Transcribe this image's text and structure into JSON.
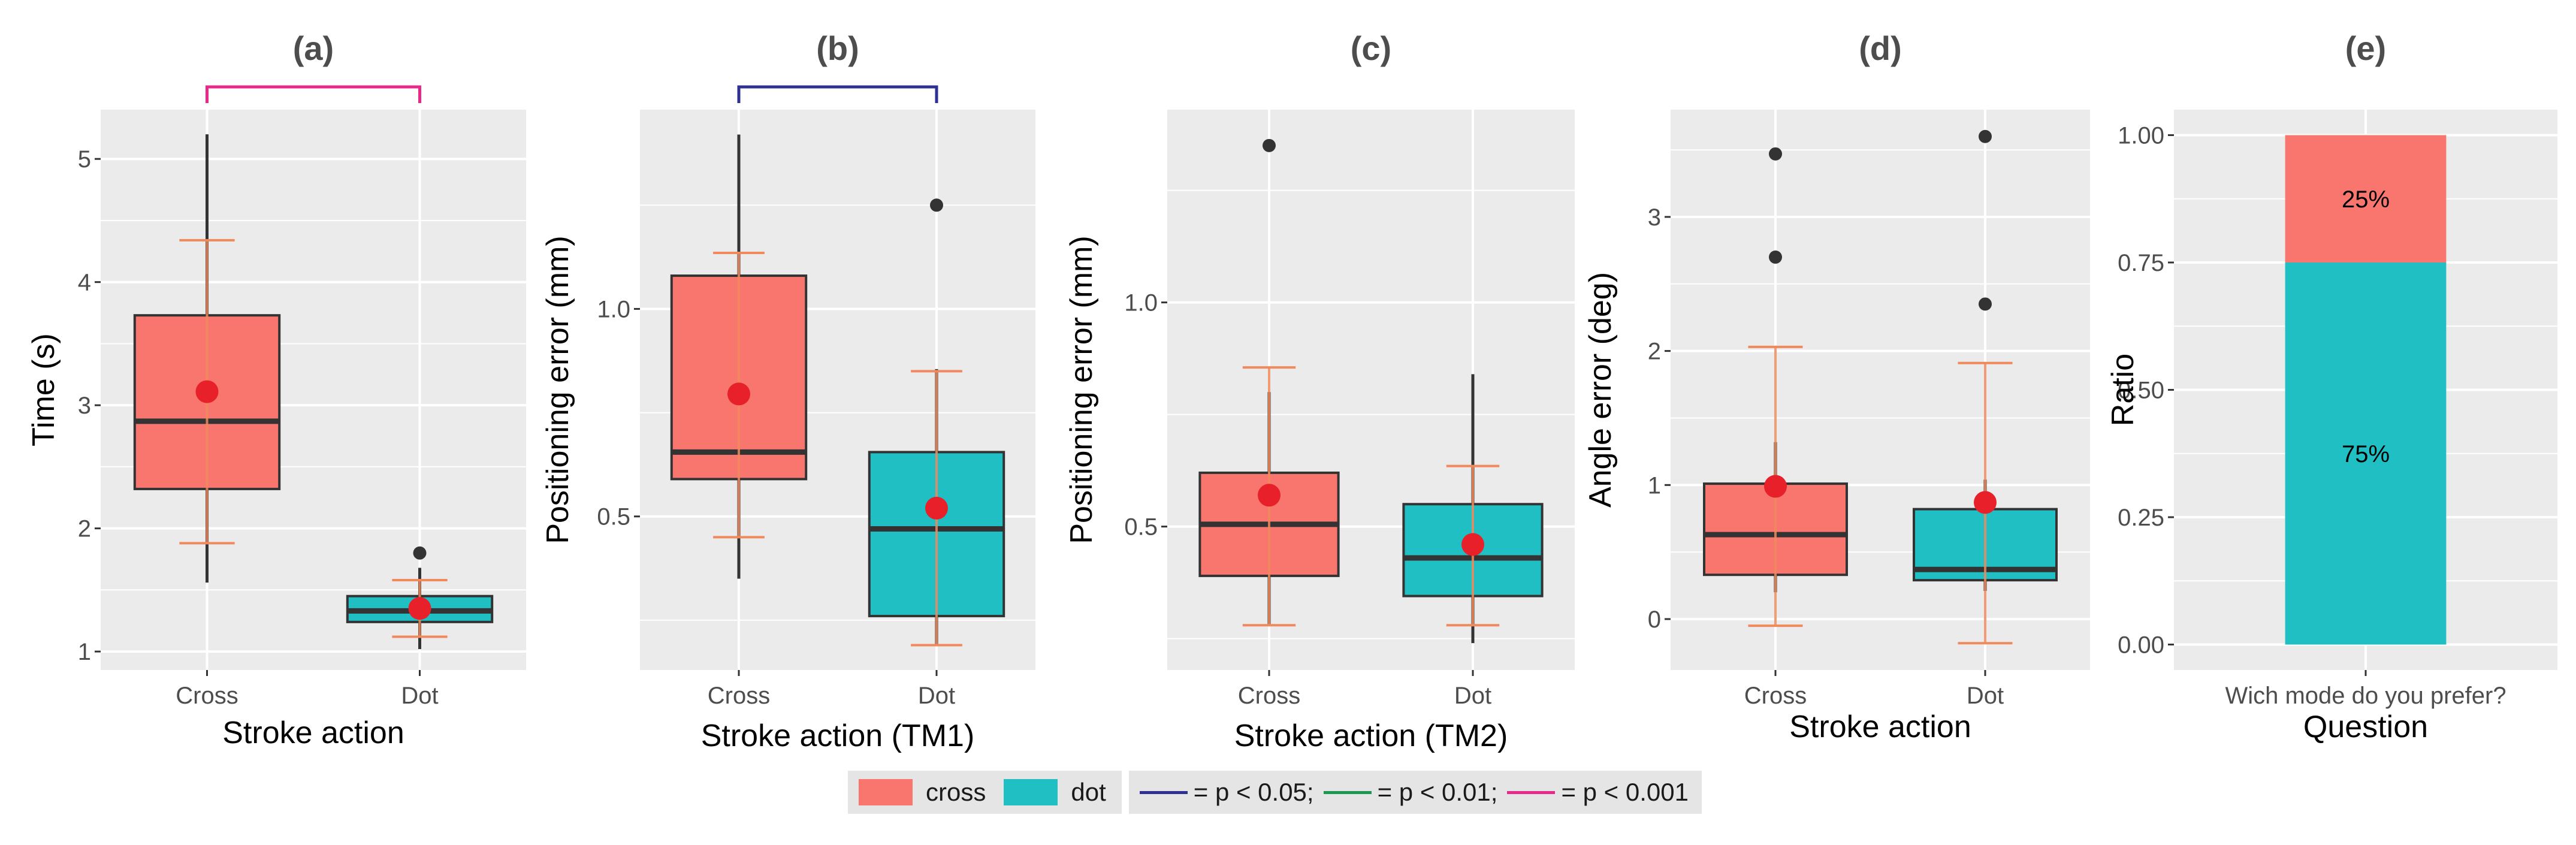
{
  "colors": {
    "cross": "#F8766D",
    "dot": "#1FBFC3",
    "mean": "#E8202A",
    "ci": "#F08A5D",
    "panel_bg": "#EBEBEB",
    "grid": "#FFFFFF",
    "outline": "#333333",
    "sig_005": "#2E3192",
    "sig_001": "#1A9850",
    "sig_0001": "#E7298A",
    "legend_bg": "#E5E5E5"
  },
  "legend": {
    "cross_label": "cross",
    "dot_label": "dot",
    "sig": [
      {
        "label": "= p < 0.05;",
        "color": "#2E3192"
      },
      {
        "label": "= p < 0.01;",
        "color": "#1A9850"
      },
      {
        "label": "= p < 0.001",
        "color": "#E7298A"
      }
    ]
  },
  "chart_data": [
    {
      "type": "box",
      "title": "(a)",
      "xlabel": "Stroke action",
      "ylabel": "Time (s)",
      "ylim": [
        0.85,
        5.4
      ],
      "yticks": [
        1,
        2,
        3,
        4,
        5
      ],
      "ytick_labels": [
        "1",
        "2",
        "3",
        "4",
        "5"
      ],
      "categories": [
        "Cross",
        "Dot"
      ],
      "boxes": [
        {
          "group": "cross",
          "q1": 2.32,
          "median": 2.87,
          "q3": 3.73,
          "whisker_low": 1.56,
          "whisker_high": 5.2,
          "mean": 3.11,
          "ci_low": 1.88,
          "ci_high": 4.34,
          "outliers": []
        },
        {
          "group": "dot",
          "q1": 1.24,
          "median": 1.33,
          "q3": 1.45,
          "whisker_low": 1.02,
          "whisker_high": 1.68,
          "mean": 1.35,
          "ci_low": 1.12,
          "ci_high": 1.58,
          "outliers": [
            1.8
          ]
        }
      ],
      "significance": {
        "level": "p < 0.001",
        "color": "#E7298A"
      }
    },
    {
      "type": "box",
      "title": "(b)",
      "xlabel": "Stroke action (TM1)",
      "ylabel": "Positioning error (mm)",
      "ylim": [
        0.13,
        1.48
      ],
      "yticks": [
        0.5,
        1.0
      ],
      "ytick_labels": [
        "0.5",
        "1.0"
      ],
      "categories": [
        "Cross",
        "Dot"
      ],
      "boxes": [
        {
          "group": "cross",
          "q1": 0.59,
          "median": 0.655,
          "q3": 1.08,
          "whisker_low": 0.35,
          "whisker_high": 1.42,
          "mean": 0.795,
          "ci_low": 0.45,
          "ci_high": 1.135,
          "outliers": []
        },
        {
          "group": "dot",
          "q1": 0.26,
          "median": 0.47,
          "q3": 0.655,
          "whisker_low": 0.19,
          "whisker_high": 0.855,
          "mean": 0.52,
          "ci_low": 0.19,
          "ci_high": 0.85,
          "outliers": [
            1.25
          ]
        }
      ],
      "significance": {
        "level": "p < 0.05",
        "color": "#2E3192"
      }
    },
    {
      "type": "box",
      "title": "(c)",
      "xlabel": "Stroke action (TM2)",
      "ylabel": "Positioning error (mm)",
      "ylim": [
        0.18,
        1.43
      ],
      "yticks": [
        0.5,
        1.0
      ],
      "ytick_labels": [
        "0.5",
        "1.0"
      ],
      "categories": [
        "Cross",
        "Dot"
      ],
      "boxes": [
        {
          "group": "cross",
          "q1": 0.39,
          "median": 0.505,
          "q3": 0.62,
          "whisker_low": 0.28,
          "whisker_high": 0.8,
          "mean": 0.57,
          "ci_low": 0.28,
          "ci_high": 0.855,
          "outliers": [
            1.35
          ]
        },
        {
          "group": "dot",
          "q1": 0.345,
          "median": 0.43,
          "q3": 0.55,
          "whisker_low": 0.24,
          "whisker_high": 0.84,
          "mean": 0.46,
          "ci_low": 0.28,
          "ci_high": 0.635,
          "outliers": []
        }
      ]
    },
    {
      "type": "box",
      "title": "(d)",
      "xlabel": "Stroke action",
      "ylabel": "Angle error (deg)",
      "ylim": [
        -0.38,
        3.8
      ],
      "yticks": [
        0,
        1,
        2,
        3
      ],
      "ytick_labels": [
        "0",
        "1",
        "2",
        "3"
      ],
      "categories": [
        "Cross",
        "Dot"
      ],
      "boxes": [
        {
          "group": "cross",
          "q1": 0.33,
          "median": 0.63,
          "q3": 1.01,
          "whisker_low": 0.2,
          "whisker_high": 1.32,
          "mean": 0.99,
          "ci_low": -0.05,
          "ci_high": 2.03,
          "outliers": [
            3.47,
            2.7
          ]
        },
        {
          "group": "dot",
          "q1": 0.29,
          "median": 0.37,
          "q3": 0.82,
          "whisker_low": 0.21,
          "whisker_high": 1.04,
          "mean": 0.87,
          "ci_low": -0.18,
          "ci_high": 1.91,
          "outliers": [
            3.6,
            2.35
          ]
        }
      ]
    },
    {
      "type": "stacked_bar",
      "title": "(e)",
      "xlabel": "Question",
      "ylabel": "Ratio",
      "ylim": [
        -0.05,
        1.05
      ],
      "yticks": [
        0,
        0.25,
        0.5,
        0.75,
        1.0
      ],
      "ytick_labels": [
        "0.00",
        "0.25",
        "0.50",
        "0.75",
        "1.00"
      ],
      "categories": [
        "Wich mode do you prefer?"
      ],
      "segments": [
        {
          "group": "dot",
          "value": 0.75,
          "label": "75%"
        },
        {
          "group": "cross",
          "value": 0.25,
          "label": "25%"
        }
      ]
    }
  ]
}
